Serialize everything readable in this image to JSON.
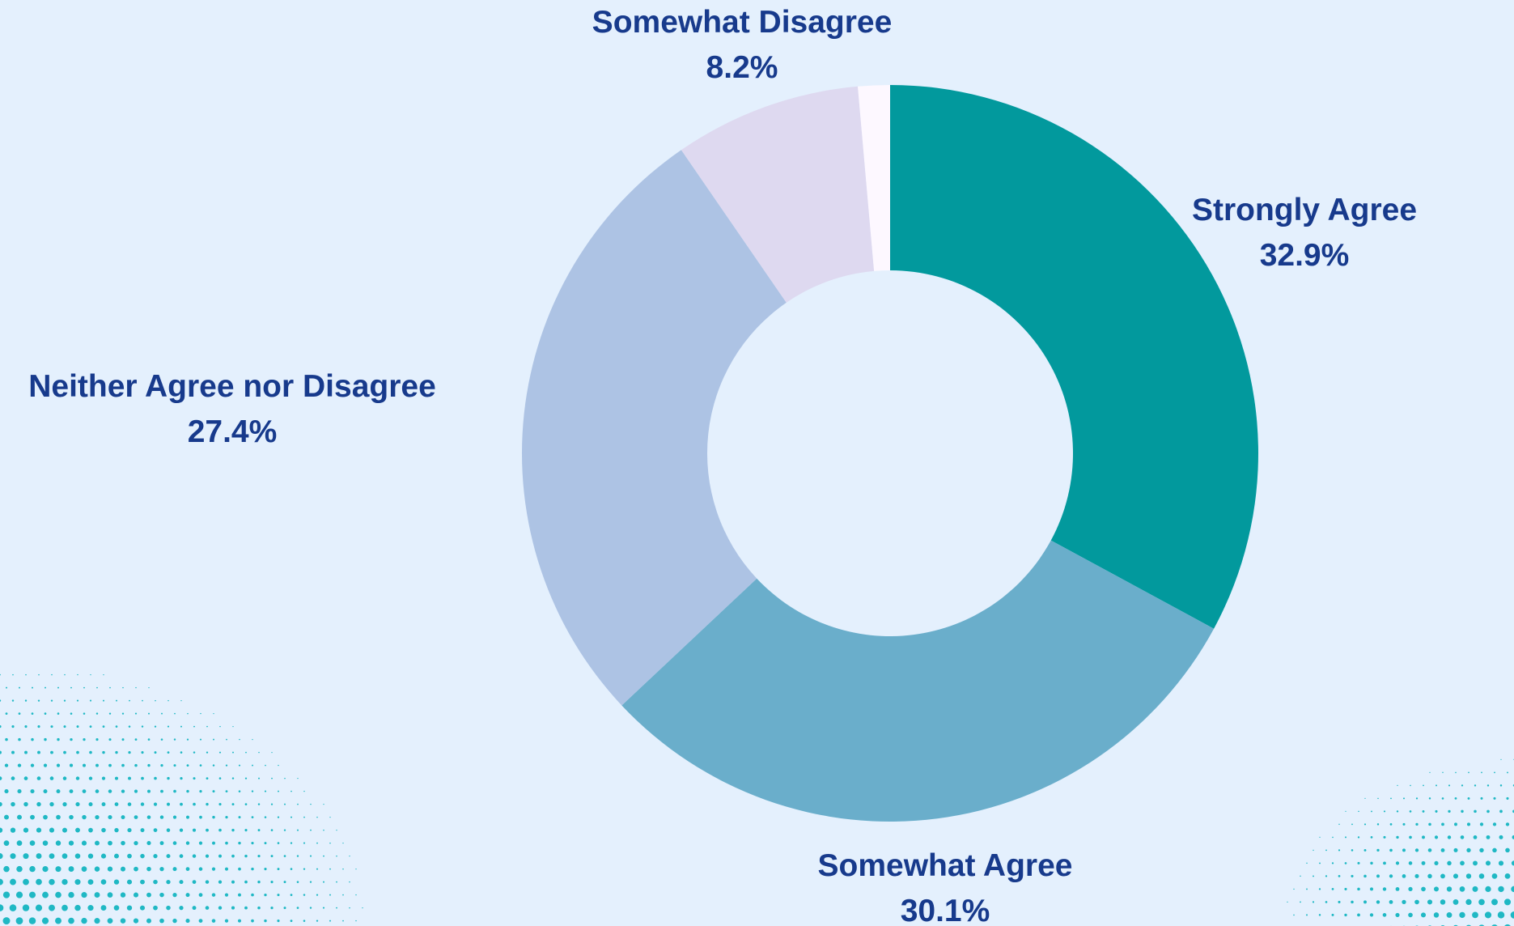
{
  "chart_data": {
    "type": "pie",
    "variant": "donut",
    "title": "",
    "slices": [
      {
        "label": "Strongly Agree",
        "value": 32.9,
        "value_label": "32.9%",
        "color": "#02999d"
      },
      {
        "label": "Somewhat Agree",
        "value": 30.1,
        "value_label": "30.1%",
        "color": "#6aaecb"
      },
      {
        "label": "Neither Agree nor Disagree",
        "value": 27.4,
        "value_label": "27.4%",
        "color": "#adc3e4"
      },
      {
        "label": "Somewhat Disagree",
        "value": 8.2,
        "value_label": "8.2%",
        "color": "#ded9f0"
      },
      {
        "label": "",
        "value": 1.4,
        "value_label": "",
        "color": "#fdf8ff"
      }
    ],
    "start_angle_deg": 0,
    "direction": "clockwise",
    "legend": "none"
  },
  "colors": {
    "background": "#e4f0fd",
    "label_text": "#173a8c",
    "halftone_dots": "#1fb8c4"
  }
}
